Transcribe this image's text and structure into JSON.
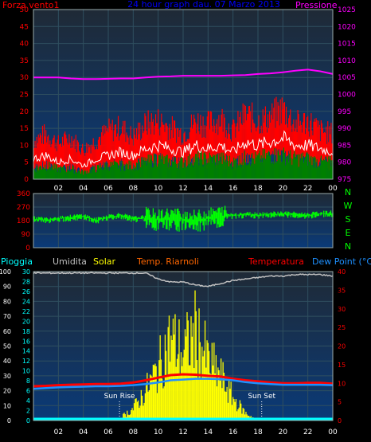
{
  "header": {
    "left_title": "Forza vento1",
    "center_title": "24 hour graph dau. 07 Marzo 2013",
    "right_title": "Pressione"
  },
  "colors": {
    "wind": "#ff0000",
    "wind_avg": "#008000",
    "gust_line": "#ffffff",
    "pressure": "#ff00ff",
    "direction": "#00ff00",
    "humidity": "#c0c0c0",
    "solar": "#ffff00",
    "rain": "#00ffff",
    "temp": "#ff0000",
    "dew": "#1e90ff",
    "temp_int": "#ff6600",
    "title_blue": "#0000ff",
    "right_label": "#ff00ff"
  },
  "compass": [
    "N",
    "W",
    "S",
    "E",
    "N"
  ],
  "sun_labels": {
    "rise": "Sun Rise",
    "set": "Sun Set"
  },
  "chart_data": [
    {
      "type": "line",
      "name": "wind_pressure",
      "title": "24 hour graph dau. 07 Marzo 2013",
      "x_ticks": [
        "02",
        "04",
        "06",
        "08",
        "10",
        "12",
        "14",
        "16",
        "18",
        "20",
        "22",
        "00"
      ],
      "y_left_label": "Forza vento1",
      "y_left_ticks": [
        0,
        5,
        10,
        15,
        20,
        25,
        30,
        35,
        40,
        45,
        50
      ],
      "ylim_left": [
        0,
        50
      ],
      "y_right_label": "Pressione",
      "y_right_ticks": [
        975,
        980,
        985,
        990,
        995,
        1000,
        1005,
        1010,
        1015,
        1020,
        1025
      ],
      "ylim_right": [
        975,
        1025
      ],
      "hours": [
        0,
        1,
        2,
        3,
        4,
        5,
        6,
        7,
        8,
        9,
        10,
        11,
        12,
        13,
        14,
        15,
        16,
        17,
        18,
        19,
        20,
        21,
        22,
        23,
        24
      ],
      "wind_gust": [
        12,
        14,
        11,
        13,
        9,
        12,
        15,
        16,
        13,
        17,
        18,
        16,
        14,
        18,
        17,
        19,
        15,
        20,
        18,
        19,
        22,
        17,
        18,
        15,
        14
      ],
      "wind_mean": [
        6,
        7,
        5,
        6,
        4,
        6,
        7,
        8,
        7,
        9,
        10,
        9,
        8,
        10,
        9,
        10,
        8,
        11,
        10,
        11,
        12,
        10,
        10,
        9,
        8
      ],
      "wind_avg": [
        3,
        4,
        3,
        3,
        2,
        3,
        4,
        4,
        4,
        5,
        6,
        5,
        5,
        6,
        6,
        6,
        5,
        6,
        6,
        7,
        7,
        6,
        6,
        5,
        5
      ],
      "pressure": [
        1005,
        1005,
        1005,
        1004.7,
        1004.5,
        1004.5,
        1004.6,
        1004.7,
        1004.7,
        1005,
        1005.2,
        1005.3,
        1005.5,
        1005.5,
        1005.5,
        1005.5,
        1005.6,
        1005.7,
        1006,
        1006.2,
        1006.5,
        1007,
        1007.3,
        1006.8,
        1006
      ]
    },
    {
      "type": "scatter",
      "name": "wind_direction",
      "ylim": [
        0,
        360
      ],
      "y_ticks": [
        0,
        90,
        180,
        270,
        360
      ],
      "hours": [
        0,
        1,
        2,
        3,
        4,
        5,
        6,
        7,
        8,
        9,
        10,
        11,
        12,
        13,
        14,
        15,
        16,
        17,
        18,
        19,
        20,
        21,
        22,
        23,
        24
      ],
      "direction": [
        190,
        185,
        195,
        200,
        210,
        180,
        205,
        215,
        190,
        200,
        185,
        200,
        190,
        180,
        195,
        210,
        215,
        220,
        218,
        222,
        225,
        220,
        215,
        225,
        228
      ]
    },
    {
      "type": "line",
      "name": "temp_humidity",
      "labels": {
        "rain": "Pioggia",
        "humidity": "Umidita",
        "solar": "Solar",
        "temp_int": "Temp. Riarnoli",
        "temp": "Temperatura",
        "dew": "Dew Point (°C)"
      },
      "x_ticks": [
        "02",
        "04",
        "06",
        "08",
        "10",
        "12",
        "14",
        "16",
        "18",
        "20",
        "22",
        "00"
      ],
      "y_humidity_ticks": [
        0,
        10,
        20,
        30,
        40,
        50,
        60,
        70,
        80,
        90,
        100
      ],
      "ylim_humidity": [
        0,
        100
      ],
      "y_rain_ticks": [
        0,
        2,
        4,
        6,
        8,
        10,
        12,
        14,
        16,
        18,
        20,
        22,
        24,
        26,
        28,
        30
      ],
      "ylim_rain": [
        0,
        30
      ],
      "y_temp_ticks": [
        0,
        5,
        10,
        15,
        20,
        25,
        30,
        35,
        40
      ],
      "ylim_temp": [
        0,
        40
      ],
      "hours": [
        0,
        1,
        2,
        3,
        4,
        5,
        6,
        7,
        8,
        9,
        10,
        11,
        12,
        13,
        14,
        15,
        16,
        17,
        18,
        19,
        20,
        21,
        22,
        23,
        24
      ],
      "humidity": [
        99,
        99,
        99,
        99,
        99,
        99,
        99,
        99,
        99,
        99,
        95,
        93,
        93,
        91,
        90,
        92,
        94,
        95,
        96,
        97,
        97,
        98,
        98,
        98,
        97
      ],
      "temperature": [
        9.2,
        9.3,
        9.5,
        9.6,
        9.7,
        9.8,
        9.8,
        9.9,
        10.2,
        10.8,
        11.5,
        12.2,
        12.4,
        12.3,
        12.0,
        11.8,
        11.2,
        10.8,
        10.5,
        10.2,
        10.0,
        10.0,
        10.1,
        10.1,
        9.9
      ],
      "dew_point": [
        8.5,
        8.7,
        8.9,
        9.0,
        9.1,
        9.2,
        9.2,
        9.3,
        9.5,
        9.8,
        10.2,
        10.8,
        11.0,
        11.2,
        11.2,
        11.1,
        10.8,
        10.3,
        10.0,
        9.8,
        9.6,
        9.6,
        9.6,
        9.6,
        9.5
      ],
      "solar_pct": [
        0,
        0,
        0,
        0,
        0,
        0,
        0,
        2,
        8,
        20,
        35,
        55,
        45,
        60,
        40,
        30,
        15,
        5,
        0,
        0,
        0,
        0,
        0,
        0,
        0
      ],
      "rain": [
        0,
        0,
        0,
        0,
        0,
        0,
        0,
        0,
        0,
        0,
        0,
        0,
        0,
        0,
        0,
        0,
        0,
        0,
        0,
        0,
        0,
        0,
        0,
        0,
        0
      ],
      "sun_rise_hour": 6.9,
      "sun_set_hour": 18.3
    }
  ]
}
